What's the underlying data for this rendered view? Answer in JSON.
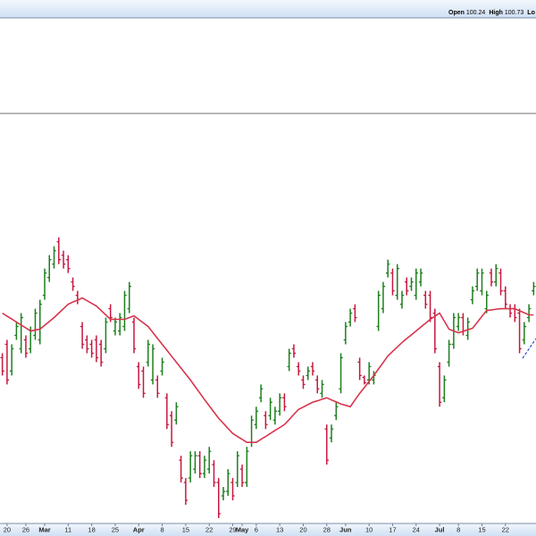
{
  "chart_data": {
    "type": "ohlc",
    "readout_labels": [
      "Open",
      "High",
      "Lo"
    ],
    "readout_values": [
      100.24,
      100.73
    ],
    "categories": [
      null,
      "20",
      null,
      null,
      null,
      "26",
      null,
      null,
      null,
      "Mar",
      null,
      null,
      null,
      null,
      "11",
      null,
      null,
      null,
      null,
      "18",
      null,
      null,
      null,
      null,
      "25",
      null,
      null,
      null,
      null,
      "Apr",
      null,
      null,
      null,
      null,
      "8",
      null,
      null,
      null,
      null,
      "15",
      null,
      null,
      null,
      null,
      "22",
      null,
      null,
      null,
      null,
      "29",
      null,
      "May",
      null,
      null,
      "6",
      null,
      null,
      null,
      null,
      "13",
      null,
      null,
      null,
      null,
      "20",
      null,
      null,
      null,
      null,
      "28",
      null,
      null,
      null,
      "Jun",
      null,
      null,
      null,
      null,
      "10",
      null,
      null,
      null,
      null,
      "17",
      null,
      null,
      null,
      null,
      "24",
      null,
      null,
      null,
      null,
      "Jul",
      null,
      null,
      null,
      "8",
      null,
      null,
      null,
      null,
      "15",
      null,
      null,
      null,
      null,
      "22",
      null,
      null,
      null,
      null,
      null,
      null
    ],
    "month_labels": [
      "Mar",
      "Apr",
      "May",
      "Jun",
      "Jul"
    ],
    "open": [
      97.5,
      98.25,
      96.75,
      98.75,
      98,
      98.5,
      98,
      98.75,
      98.5,
      101,
      102,
      102.75,
      104,
      103.25,
      103,
      101.75,
      101,
      99.25,
      98.5,
      98.25,
      98.5,
      98.25,
      98,
      100.25,
      99,
      99,
      99.25,
      100.25,
      99.5,
      97,
      96.75,
      97.25,
      96.25,
      96.25,
      96.75,
      95.25,
      94.25,
      94,
      91.75,
      90.5,
      90.75,
      91.25,
      92,
      91,
      91.25,
      91.5,
      90.5,
      89.75,
      90,
      90.5,
      90.5,
      91.25,
      90.5,
      92.75,
      93.75,
      95.25,
      94.25,
      94.25,
      94,
      94.5,
      95.25,
      97,
      98,
      97,
      96.25,
      96.5,
      97,
      96.25,
      95.5,
      93.5,
      93,
      94.25,
      95.75,
      98.5,
      99.5,
      100.25,
      97.25,
      96.4,
      96.25,
      96.25,
      99.25,
      100.25,
      102.25,
      102.25,
      101,
      100.5,
      101.75,
      101.5,
      101,
      101.75,
      101,
      101,
      100,
      97,
      95.25,
      97.25,
      98.25,
      99.25,
      99.75,
      98.75,
      100.75,
      101.5,
      101.25,
      100.25,
      102.25,
      101.75,
      102.25,
      101.25,
      100.25,
      100.25,
      100,
      98.5,
      99.75,
      101.25
    ],
    "high": [
      97.75,
      98.5,
      98.25,
      99.5,
      100,
      98.75,
      99.25,
      100.25,
      100.75,
      102.5,
      103.25,
      103.75,
      104.25,
      103.5,
      103.25,
      102,
      101.25,
      99.5,
      98.75,
      98.5,
      98.75,
      98.5,
      99.75,
      100.5,
      99.75,
      100,
      101.25,
      101.75,
      99.75,
      97.25,
      97,
      98.5,
      98.25,
      96.5,
      97.5,
      95.5,
      94.5,
      95,
      92,
      90.75,
      92.25,
      92.25,
      92.25,
      92,
      92.5,
      91.75,
      90.75,
      90.25,
      91.25,
      90.75,
      92.25,
      91.5,
      92.5,
      94.25,
      94.75,
      96,
      94.5,
      95.25,
      94.75,
      95.5,
      95.5,
      98,
      98.25,
      97.25,
      96.5,
      97,
      97.25,
      96.5,
      96.25,
      93.75,
      93.75,
      95,
      97.75,
      99.5,
      100.25,
      100.5,
      97.5,
      96.5,
      97.25,
      96.75,
      101.25,
      101.75,
      103,
      102.5,
      102.75,
      101.25,
      102,
      102,
      102.5,
      102.5,
      101.25,
      101.25,
      100.25,
      97.25,
      96.5,
      98.5,
      100,
      100,
      100,
      99.75,
      101.5,
      102.5,
      102.5,
      101.25,
      102.5,
      102.75,
      102.5,
      101.5,
      100.5,
      100.5,
      100.25,
      99.5,
      100.5,
      101.75
    ],
    "low": [
      96.5,
      96,
      96.5,
      98.5,
      97.75,
      97.5,
      97.75,
      98.5,
      98.25,
      100.75,
      101.75,
      102.5,
      102.75,
      102.5,
      102.25,
      101.25,
      100.5,
      98,
      97.75,
      97.5,
      97.25,
      97,
      97.75,
      99.5,
      98.75,
      98.75,
      99,
      100,
      97.75,
      95.75,
      95.25,
      97,
      96,
      95.25,
      96.5,
      93.5,
      92.5,
      93.75,
      90.5,
      89.25,
      90.5,
      91,
      90.75,
      90.75,
      91,
      90.25,
      88.5,
      89.5,
      89.75,
      89.5,
      90.25,
      90.25,
      90.25,
      92.5,
      93.5,
      95,
      93.5,
      94,
      93.75,
      94.25,
      94.5,
      96.75,
      97.5,
      96.5,
      95.75,
      96.25,
      96.5,
      95.5,
      95.25,
      91.5,
      92.75,
      94,
      95.5,
      98.25,
      99.25,
      99.5,
      96.25,
      96,
      96,
      96,
      99,
      100,
      102,
      101,
      100.75,
      100.25,
      101,
      101.25,
      100.75,
      101.5,
      100.25,
      99.5,
      97.75,
      94.75,
      95,
      97,
      98,
      99,
      98.75,
      98.5,
      100.5,
      101.25,
      101,
      100,
      101.5,
      101.5,
      101,
      100.25,
      99.75,
      99.5,
      97.75,
      98.25,
      99.5,
      101
    ],
    "close": [
      96.75,
      96.25,
      98,
      99.25,
      99.75,
      97.75,
      99,
      100,
      100.5,
      102.25,
      103,
      103.5,
      103,
      102.75,
      102.5,
      101.5,
      100.75,
      98.25,
      98,
      97.75,
      97.5,
      97.25,
      99.5,
      99.75,
      99.5,
      99.75,
      101,
      101.5,
      98,
      96,
      95.5,
      98.25,
      98,
      95.5,
      97.25,
      93.75,
      92.75,
      94.75,
      90.75,
      89.5,
      92,
      92,
      91,
      91.75,
      92.25,
      90.5,
      88.75,
      90,
      91,
      89.75,
      92,
      90.5,
      92.25,
      94,
      94.5,
      95.75,
      93.75,
      95,
      94.5,
      95.25,
      94.75,
      97.75,
      97.75,
      96.75,
      96,
      96.75,
      96.75,
      95.75,
      96,
      91.75,
      93.5,
      94.75,
      97.5,
      99.25,
      100,
      99.75,
      96.5,
      96.1,
      97,
      96.5,
      101,
      101.5,
      102.75,
      101.25,
      102.5,
      101,
      101.25,
      101.75,
      102.25,
      102.25,
      100.5,
      99.75,
      98,
      95,
      96.25,
      98.25,
      99.75,
      99.75,
      99,
      99.5,
      101.25,
      102.25,
      102.25,
      101,
      101.75,
      102.5,
      101.25,
      100.5,
      100,
      99.75,
      98,
      99.25,
      100.25,
      101.5
    ],
    "ma_values": [
      100,
      99.83,
      99.67,
      99.5,
      99.33,
      99.17,
      99,
      99.05,
      99.1,
      99.32,
      99.53,
      99.75,
      100,
      100.25,
      100.5,
      100.62,
      100.73,
      100.85,
      100.7,
      100.55,
      100.4,
      100.15,
      99.9,
      99.65,
      99.65,
      99.65,
      99.65,
      99.75,
      99.85,
      99.65,
      99.45,
      99.25,
      98.92,
      98.58,
      98.25,
      97.92,
      97.58,
      97.25,
      96.92,
      96.58,
      96.25,
      95.88,
      95.52,
      95.15,
      94.8,
      94.45,
      94.1,
      93.82,
      93.53,
      93.25,
      93.08,
      92.92,
      92.75,
      92.75,
      92.75,
      92.92,
      93.08,
      93.25,
      93.42,
      93.58,
      93.75,
      94.03,
      94.32,
      94.6,
      94.73,
      94.87,
      95,
      95.08,
      95.17,
      95.25,
      95.13,
      95.02,
      94.9,
      94.83,
      94.75,
      95.13,
      95.5,
      95.83,
      96.17,
      96.5,
      96.87,
      97.23,
      97.6,
      97.85,
      98.1,
      98.35,
      98.57,
      98.78,
      99,
      99.22,
      99.43,
      99.65,
      99.83,
      100,
      99.55,
      99.1,
      99,
      98.9,
      98.98,
      99.07,
      99.15,
      99.48,
      99.82,
      100.15,
      100.18,
      100.22,
      100.25,
      100.25,
      100.25,
      100.25,
      100.13,
      100.02,
      99.9,
      99.9
    ],
    "up_color": "#1d7f1d",
    "down_color": "#c8173f",
    "ma_color": "#d8344d",
    "ylim": [
      88.25,
      111.15
    ]
  }
}
